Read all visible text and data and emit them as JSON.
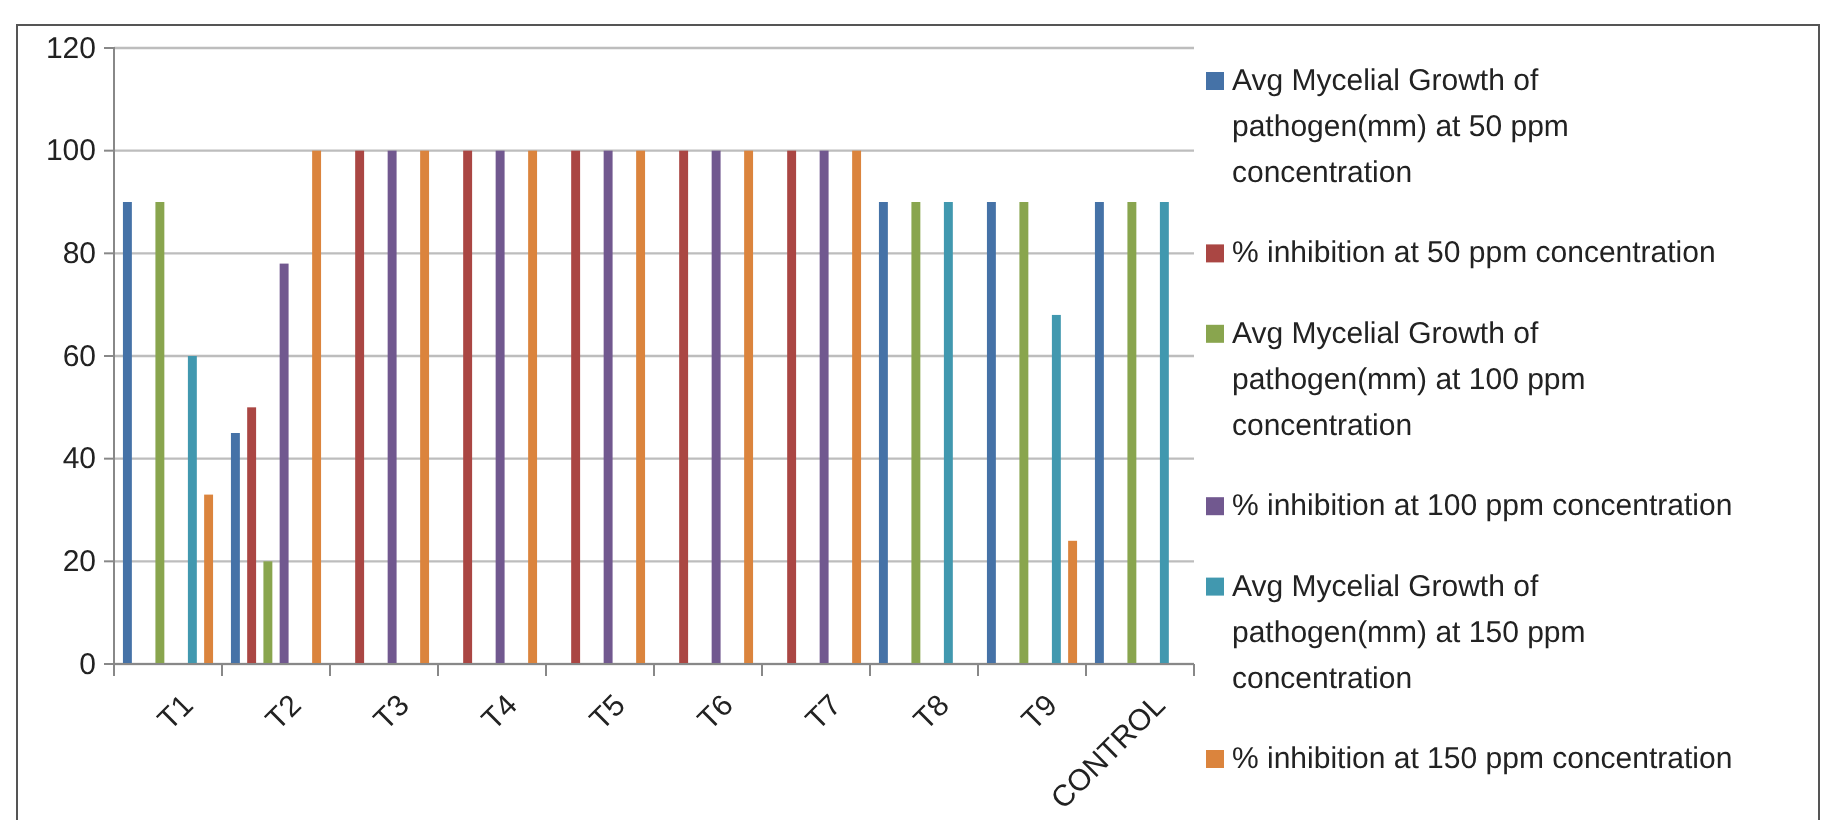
{
  "chart_data": {
    "type": "bar",
    "categories": [
      "T1",
      "T2",
      "T3",
      "T4",
      "T5",
      "T6",
      "T7",
      "T8",
      "T9",
      "CONTROL"
    ],
    "series": [
      {
        "name": "Avg Mycelial Growth of pathogen(mm) at 50 ppm concentration",
        "color": "#4572a7",
        "values": [
          90,
          45,
          0,
          0,
          0,
          0,
          0,
          90,
          90,
          90
        ]
      },
      {
        "name": "% inhibition at 50 ppm concentration",
        "color": "#aa4643",
        "values": [
          0,
          50,
          100,
          100,
          100,
          100,
          100,
          0,
          0,
          0
        ]
      },
      {
        "name": "Avg Mycelial Growth of pathogen(mm) at 100 ppm concentration",
        "color": "#89a54e",
        "values": [
          90,
          20,
          0,
          0,
          0,
          0,
          0,
          90,
          90,
          90
        ]
      },
      {
        "name": "% inhibition at 100 ppm concentration",
        "color": "#71588f",
        "values": [
          0,
          78,
          100,
          100,
          100,
          100,
          100,
          0,
          0,
          0
        ]
      },
      {
        "name": "Avg Mycelial Growth of pathogen(mm) at 150 ppm concentration",
        "color": "#4198af",
        "values": [
          60,
          0,
          0,
          0,
          0,
          0,
          0,
          90,
          68,
          90
        ]
      },
      {
        "name": "% inhibition at 150 ppm concentration",
        "color": "#db843d",
        "values": [
          33,
          100,
          100,
          100,
          100,
          100,
          100,
          0,
          24,
          0
        ]
      }
    ],
    "ylim": [
      0,
      120
    ],
    "yticks": [
      0,
      20,
      40,
      60,
      80,
      100,
      120
    ],
    "grid": "y",
    "legend": "right"
  }
}
